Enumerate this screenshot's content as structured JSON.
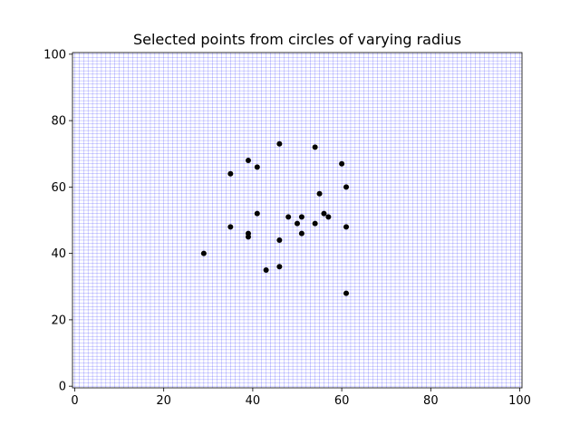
{
  "chart_data": {
    "type": "scatter",
    "title": "Selected points from circles of varying radius",
    "xlabel": "",
    "ylabel": "",
    "xlim": [
      -0.5,
      100.5
    ],
    "ylim": [
      -0.5,
      100.5
    ],
    "xticks": [
      0,
      20,
      40,
      60,
      80,
      100
    ],
    "yticks": [
      0,
      20,
      40,
      60,
      80,
      100
    ],
    "grid": true,
    "grid_step": 1,
    "grid_color": "#0000ff",
    "marker_color": "#000000",
    "series": [
      {
        "points": [
          {
            "x": 46,
            "y": 73
          },
          {
            "x": 54,
            "y": 72
          },
          {
            "x": 39,
            "y": 68
          },
          {
            "x": 60,
            "y": 67
          },
          {
            "x": 41,
            "y": 66
          },
          {
            "x": 35,
            "y": 64
          },
          {
            "x": 61,
            "y": 60
          },
          {
            "x": 55,
            "y": 58
          },
          {
            "x": 41,
            "y": 52
          },
          {
            "x": 56,
            "y": 52
          },
          {
            "x": 48,
            "y": 51
          },
          {
            "x": 51,
            "y": 51
          },
          {
            "x": 57,
            "y": 51
          },
          {
            "x": 50,
            "y": 49
          },
          {
            "x": 54,
            "y": 49
          },
          {
            "x": 35,
            "y": 48
          },
          {
            "x": 61,
            "y": 48
          },
          {
            "x": 39,
            "y": 46
          },
          {
            "x": 51,
            "y": 46
          },
          {
            "x": 39,
            "y": 45
          },
          {
            "x": 46,
            "y": 44
          },
          {
            "x": 29,
            "y": 40
          },
          {
            "x": 46,
            "y": 36
          },
          {
            "x": 43,
            "y": 35
          },
          {
            "x": 61,
            "y": 28
          }
        ]
      }
    ]
  }
}
